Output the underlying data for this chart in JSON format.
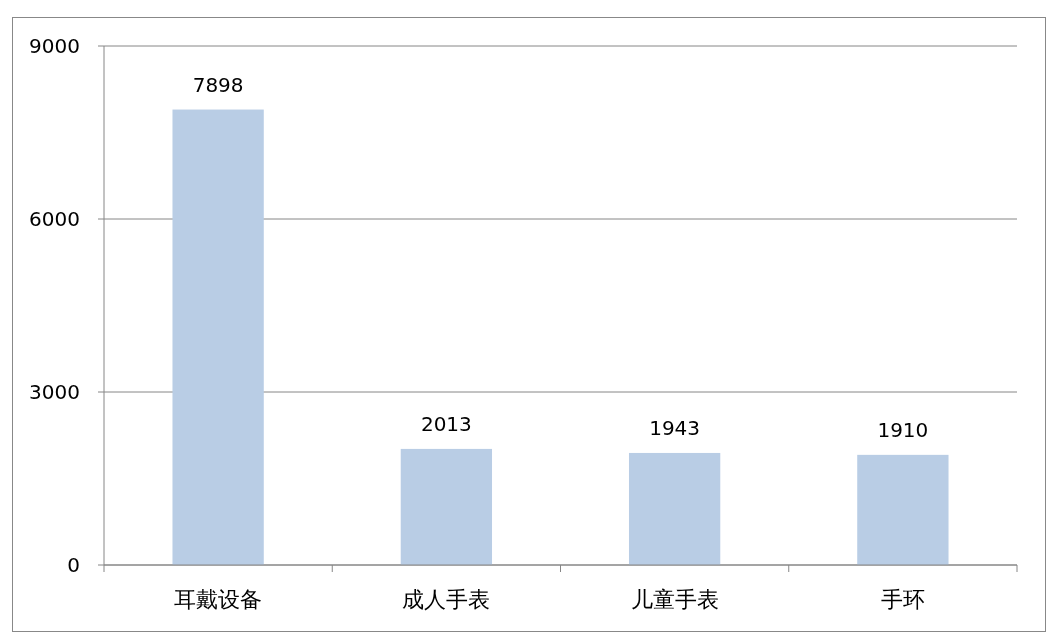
{
  "chart_data": {
    "type": "bar",
    "categories": [
      "耳戴设备",
      "成人手表",
      "儿童手表",
      "手环"
    ],
    "values": [
      7898,
      2013,
      1943,
      1910
    ],
    "color": "#b9cde5",
    "ylim": [
      0,
      9000
    ],
    "yticks": [
      0,
      3000,
      6000,
      9000
    ],
    "grid": "y",
    "data_labels": true
  }
}
